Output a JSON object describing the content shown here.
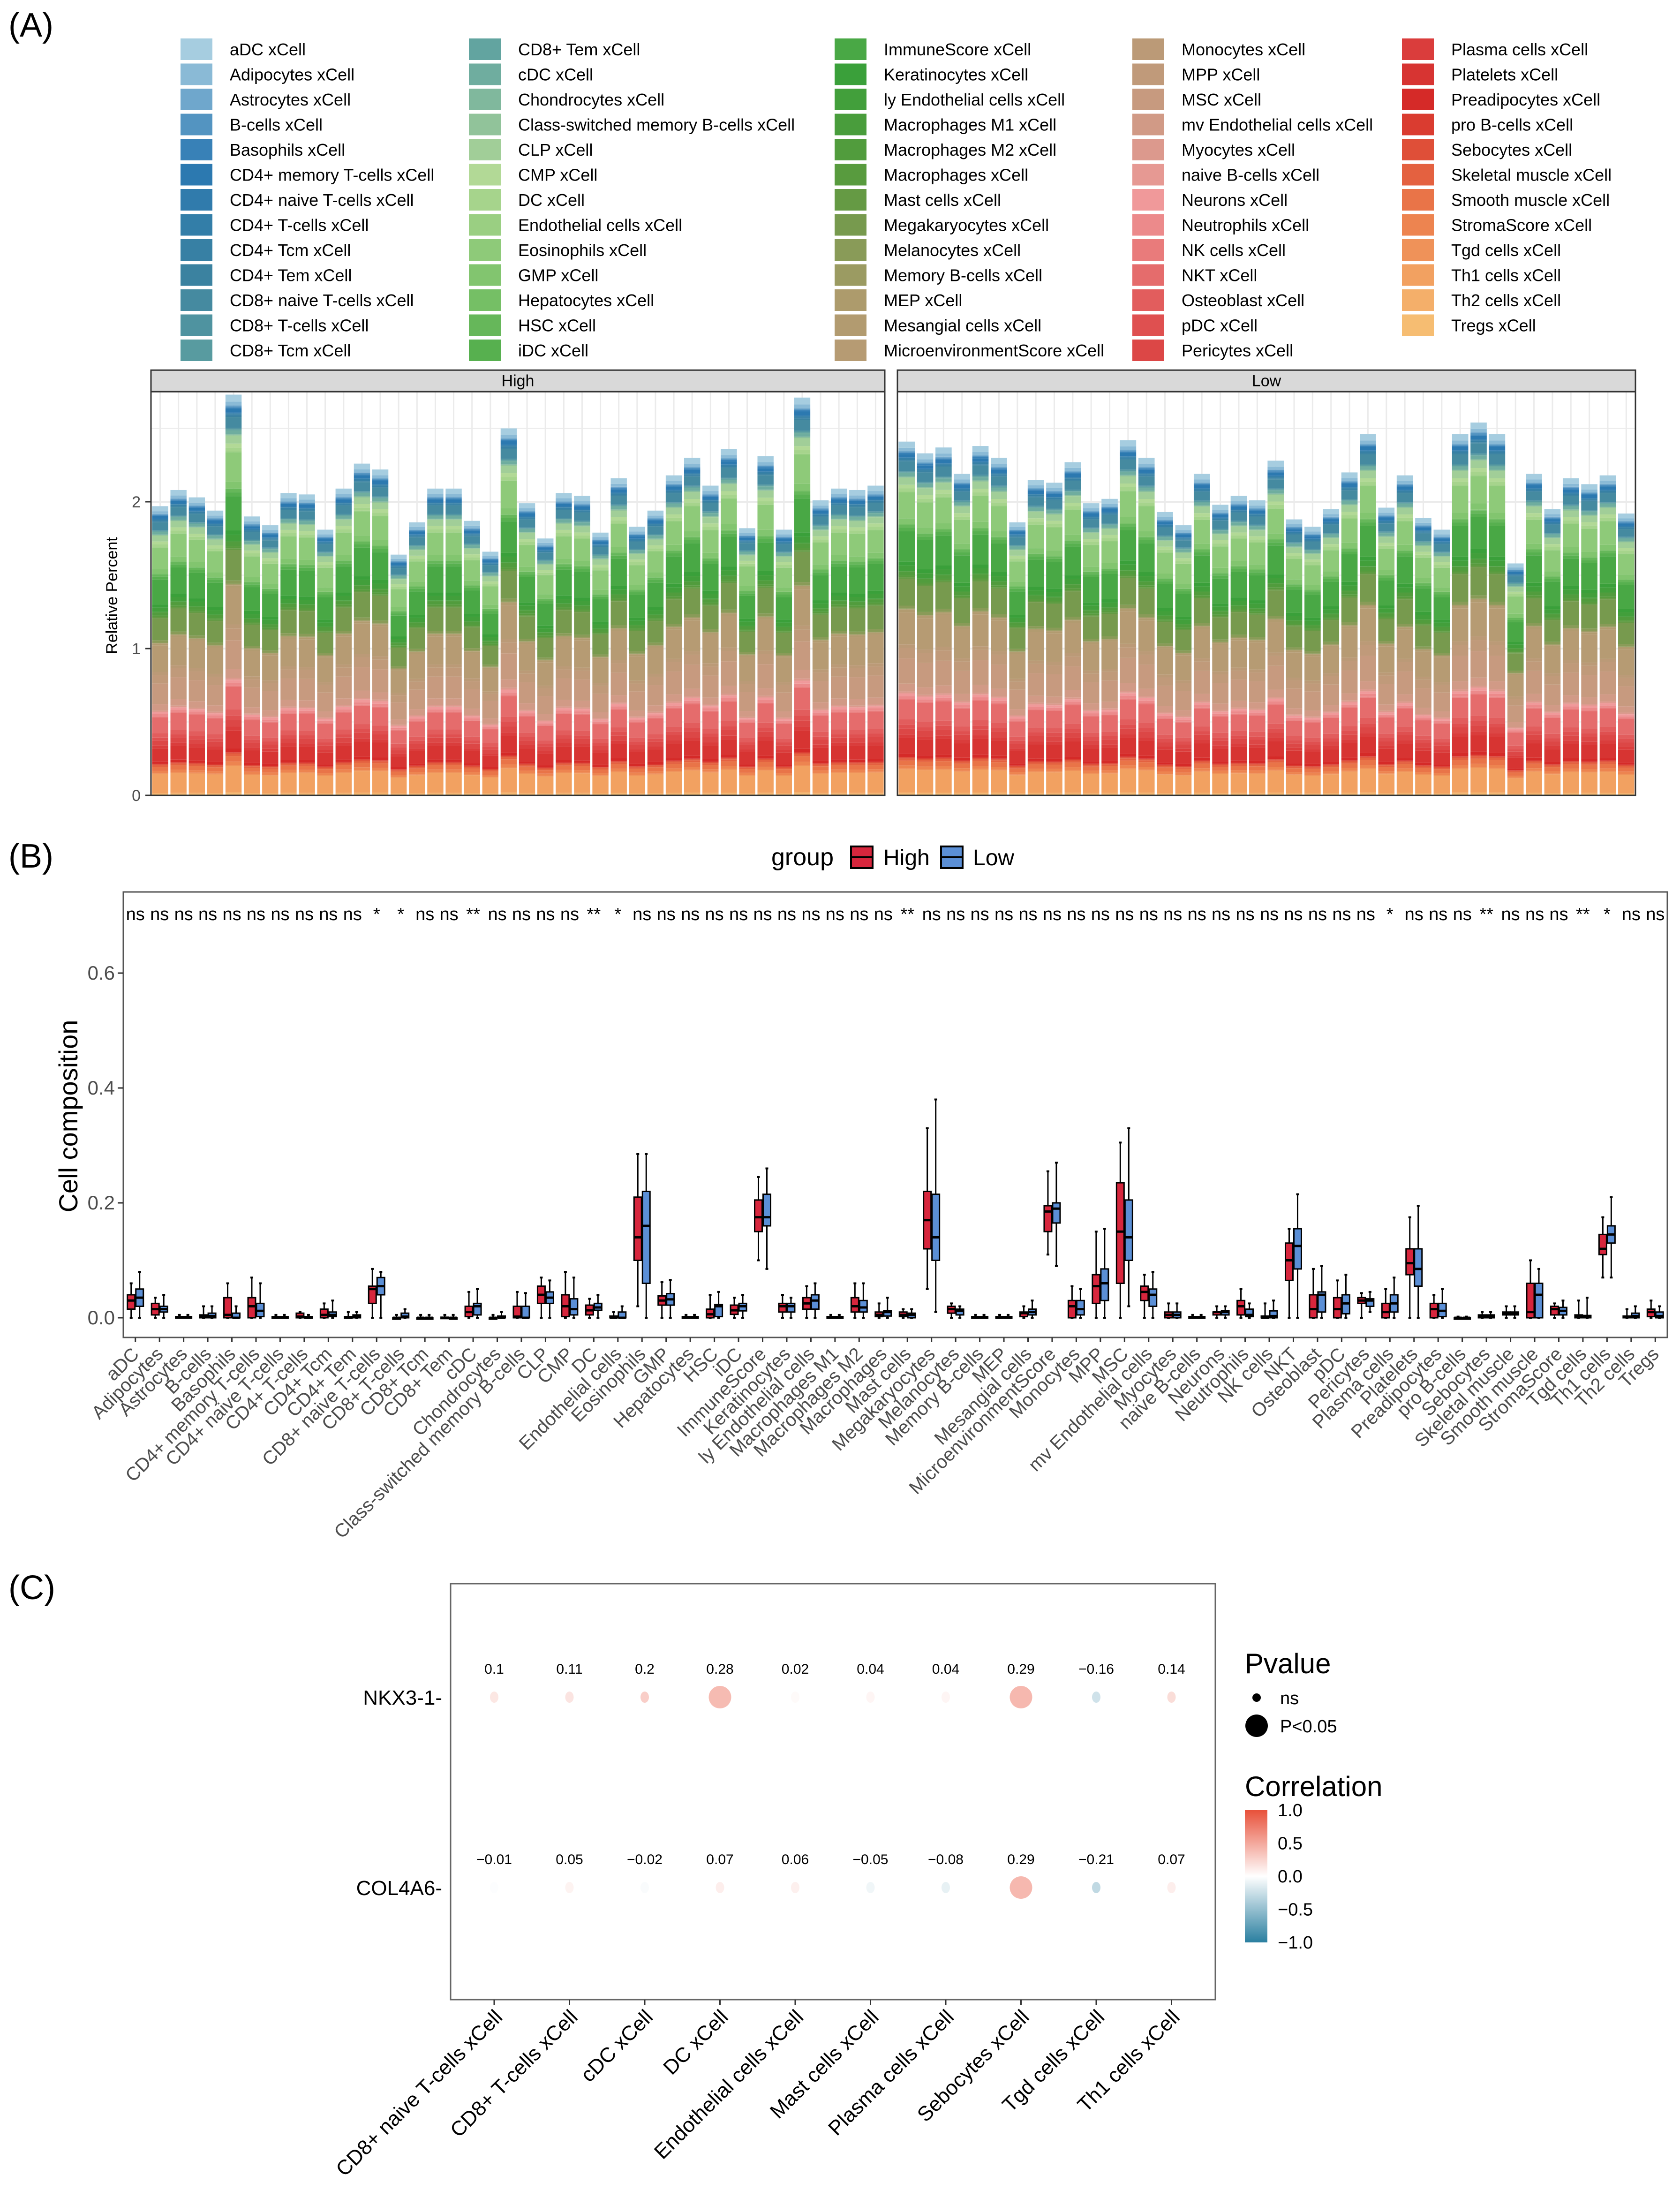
{
  "panel_labels": {
    "a": "(A)",
    "b": "(B)",
    "c": "(C)"
  },
  "colors": {
    "high": "#d7263d",
    "low": "#5b8fd6",
    "corr_neg": "#2a7fa0",
    "corr_zero": "#ffffff",
    "corr_pos": "#e8513a",
    "palette_stops": [
      "#a6cde0",
      "#2a78b2",
      "#3b82a0",
      "#67a8a0",
      "#b2d996",
      "#7cc36a",
      "#3aa03a",
      "#5c9a3f",
      "#ad9b6c",
      "#c29a7c",
      "#f0999a",
      "#e05555",
      "#d52a28",
      "#ec7d4c",
      "#f6bd72"
    ]
  },
  "cell_types": [
    "aDC",
    "Adipocytes",
    "Astrocytes",
    "B-cells",
    "Basophils",
    "CD4+ memory T-cells",
    "CD4+ naive T-cells",
    "CD4+ T-cells",
    "CD4+ Tcm",
    "CD4+ Tem",
    "CD8+ naive T-cells",
    "CD8+ T-cells",
    "CD8+ Tcm",
    "CD8+ Tem",
    "cDC",
    "Chondrocytes",
    "Class-switched memory B-cells",
    "CLP",
    "CMP",
    "DC",
    "Endothelial cells",
    "Eosinophils",
    "GMP",
    "Hepatocytes",
    "HSC",
    "iDC",
    "ImmuneScore",
    "Keratinocytes",
    "ly Endothelial cells",
    "Macrophages M1",
    "Macrophages M2",
    "Macrophages",
    "Mast cells",
    "Megakaryocytes",
    "Melanocytes",
    "Memory B-cells",
    "MEP",
    "Mesangial cells",
    "MicroenvironmentScore",
    "Monocytes",
    "MPP",
    "MSC",
    "mv Endothelial cells",
    "Myocytes",
    "naive B-cells",
    "Neurons",
    "Neutrophils",
    "NK cells",
    "NKT",
    "Osteoblast",
    "pDC",
    "Pericytes",
    "Plasma cells",
    "Platelets",
    "Preadipocytes",
    "pro B-cells",
    "Sebocytes",
    "Skeletal muscle",
    "Smooth muscle",
    "StromaScore",
    "Tgd cells",
    "Th1 cells",
    "Th2 cells",
    "Tregs"
  ],
  "chart_data": [
    {
      "type": "bar",
      "stacked": true,
      "legend_suffix": " xCell",
      "legend_placement": "top",
      "facets": [
        "High",
        "Low"
      ],
      "ylabel": "Relative Percent",
      "yticks": [
        0,
        1,
        2
      ],
      "ylim": [
        0,
        2.75
      ],
      "grid": true,
      "sample_totals": {
        "High": [
          1.97,
          2.08,
          2.03,
          1.94,
          2.73,
          1.9,
          1.84,
          2.06,
          2.05,
          1.81,
          2.09,
          2.26,
          2.22,
          1.64,
          1.86,
          2.09,
          2.09,
          1.87,
          1.66,
          2.5,
          1.99,
          1.75,
          2.06,
          2.04,
          1.79,
          2.16,
          1.83,
          1.94,
          2.18,
          2.3,
          2.11,
          2.36,
          1.82,
          2.31,
          1.81,
          2.71,
          2.01,
          2.09,
          2.08,
          2.11
        ],
        "Low": [
          2.41,
          2.33,
          2.37,
          2.19,
          2.38,
          2.3,
          1.86,
          2.15,
          2.13,
          2.27,
          1.99,
          2.02,
          2.42,
          2.3,
          1.93,
          1.84,
          2.19,
          1.98,
          2.04,
          2.01,
          2.28,
          1.88,
          1.83,
          1.95,
          2.2,
          2.46,
          1.96,
          2.18,
          1.89,
          1.81,
          2.46,
          2.54,
          2.46,
          1.58,
          2.19,
          1.95,
          2.16,
          2.12,
          2.18,
          1.92
        ]
      }
    },
    {
      "type": "box",
      "legend_title": "group",
      "groups": [
        "High",
        "Low"
      ],
      "ylabel": "Cell composition",
      "yticks": [
        "0.0",
        "0.2",
        "0.4",
        "0.6"
      ],
      "ylim": [
        -0.02,
        0.69
      ],
      "significance": [
        "ns",
        "ns",
        "ns",
        "ns",
        "ns",
        "ns",
        "ns",
        "ns",
        "ns",
        "ns",
        "*",
        "*",
        "ns",
        "ns",
        "**",
        "ns",
        "ns",
        "ns",
        "ns",
        "**",
        "*",
        "ns",
        "ns",
        "ns",
        "ns",
        "ns",
        "ns",
        "ns",
        "ns",
        "ns",
        "ns",
        "ns",
        "**",
        "ns",
        "ns",
        "ns",
        "ns",
        "ns",
        "ns",
        "ns",
        "ns",
        "ns",
        "ns",
        "ns",
        "ns",
        "ns",
        "ns",
        "ns",
        "ns",
        "ns",
        "ns",
        "ns",
        "*",
        "ns",
        "ns",
        "ns",
        "**",
        "ns",
        "ns",
        "ns",
        "**",
        "*",
        "ns",
        "ns"
      ],
      "high": [
        [
          0,
          0.015,
          0.03,
          0.04,
          0.06
        ],
        [
          0,
          0.005,
          0.015,
          0.025,
          0.035
        ],
        [
          0,
          0,
          0.001,
          0.002,
          0.005
        ],
        [
          0,
          0,
          0.002,
          0.005,
          0.02
        ],
        [
          0,
          0,
          0.005,
          0.035,
          0.06
        ],
        [
          0,
          0,
          0.02,
          0.035,
          0.07
        ],
        [
          0,
          0,
          0,
          0.002,
          0.005
        ],
        [
          0,
          0,
          0.002,
          0.008,
          0.01
        ],
        [
          0,
          0,
          0.005,
          0.015,
          0.025
        ],
        [
          0,
          0,
          0,
          0.002,
          0.01
        ],
        [
          0,
          0.025,
          0.05,
          0.055,
          0.085
        ],
        [
          0,
          0,
          0,
          0,
          0.005
        ],
        [
          0,
          0,
          0,
          0,
          0.005
        ],
        [
          0,
          0,
          0,
          0.001,
          0.005
        ],
        [
          0,
          0.002,
          0.01,
          0.02,
          0.045
        ],
        [
          0,
          0,
          0,
          0,
          0.005
        ],
        [
          0,
          0,
          0.002,
          0.02,
          0.045
        ],
        [
          0,
          0.025,
          0.04,
          0.055,
          0.07
        ],
        [
          0,
          0.002,
          0.02,
          0.04,
          0.08
        ],
        [
          0,
          0.005,
          0.013,
          0.022,
          0.033
        ],
        [
          0,
          0,
          0,
          0.003,
          0.01
        ],
        [
          0.02,
          0.1,
          0.14,
          0.21,
          0.285
        ],
        [
          0,
          0.022,
          0.03,
          0.038,
          0.062
        ],
        [
          0,
          0,
          0,
          0.002,
          0.005
        ],
        [
          0,
          0,
          0.006,
          0.015,
          0.04
        ],
        [
          0,
          0.006,
          0.013,
          0.022,
          0.035
        ],
        [
          0.1,
          0.15,
          0.175,
          0.205,
          0.245
        ],
        [
          0,
          0.01,
          0.02,
          0.025,
          0.04
        ],
        [
          0,
          0.015,
          0.025,
          0.035,
          0.055
        ],
        [
          0,
          0,
          0,
          0.002,
          0.005
        ],
        [
          0,
          0.01,
          0.02,
          0.035,
          0.06
        ],
        [
          0,
          0.002,
          0.005,
          0.01,
          0.025
        ],
        [
          0,
          0.002,
          0.005,
          0.01,
          0.015
        ],
        [
          0.05,
          0.12,
          0.17,
          0.22,
          0.33
        ],
        [
          0,
          0.008,
          0.015,
          0.02,
          0.025
        ],
        [
          0,
          0,
          0,
          0.002,
          0.005
        ],
        [
          0,
          0,
          0,
          0.002,
          0.005
        ],
        [
          0,
          0.002,
          0.008,
          0.01,
          0.02
        ],
        [
          0.11,
          0.15,
          0.185,
          0.195,
          0.255
        ],
        [
          0,
          0,
          0.02,
          0.03,
          0.055
        ],
        [
          0,
          0.025,
          0.055,
          0.075,
          0.15
        ],
        [
          0,
          0.06,
          0.15,
          0.235,
          0.305
        ],
        [
          0,
          0.03,
          0.045,
          0.055,
          0.075
        ],
        [
          0,
          0,
          0.005,
          0.01,
          0.025
        ],
        [
          0,
          0,
          0,
          0.002,
          0.005
        ],
        [
          0,
          0.005,
          0.01,
          0.01,
          0.02
        ],
        [
          0,
          0.005,
          0.02,
          0.03,
          0.05
        ],
        [
          0,
          0,
          0,
          0.003,
          0.025
        ],
        [
          0,
          0.065,
          0.1,
          0.13,
          0.155
        ],
        [
          0,
          0,
          0.015,
          0.04,
          0.085
        ],
        [
          0,
          0,
          0.015,
          0.035,
          0.065
        ],
        [
          0,
          0.025,
          0.03,
          0.035,
          0.043
        ],
        [
          0,
          0,
          0.01,
          0.025,
          0.05
        ],
        [
          0,
          0.075,
          0.095,
          0.12,
          0.175
        ],
        [
          0,
          0,
          0.015,
          0.025,
          0.04
        ],
        [
          0,
          0,
          0,
          0,
          0.002
        ],
        [
          0,
          0,
          0.002,
          0.005,
          0.01
        ],
        [
          0,
          0.005,
          0.008,
          0.01,
          0.02
        ],
        [
          0,
          0,
          0.01,
          0.06,
          0.1
        ],
        [
          0,
          0.005,
          0.015,
          0.02,
          0.025
        ],
        [
          0,
          0,
          0.002,
          0.005,
          0.03
        ],
        [
          0.07,
          0.11,
          0.12,
          0.145,
          0.175
        ],
        [
          0,
          0,
          0.002,
          0.003,
          0.015
        ],
        [
          0,
          0.002,
          0.01,
          0.015,
          0.03
        ]
      ],
      "low": [
        [
          0,
          0.02,
          0.035,
          0.05,
          0.08
        ],
        [
          0,
          0.01,
          0.015,
          0.02,
          0.04
        ],
        [
          0,
          0,
          0.001,
          0.002,
          0.005
        ],
        [
          0,
          0,
          0.003,
          0.008,
          0.02
        ],
        [
          0,
          0,
          0,
          0.008,
          0.02
        ],
        [
          0,
          0.002,
          0.012,
          0.025,
          0.06
        ],
        [
          0,
          0,
          0,
          0.002,
          0.005
        ],
        [
          0,
          0,
          0,
          0.002,
          0.005
        ],
        [
          0,
          0.002,
          0.005,
          0.01,
          0.03
        ],
        [
          0,
          0,
          0.003,
          0.005,
          0.01
        ],
        [
          0,
          0.04,
          0.055,
          0.07,
          0.08
        ],
        [
          0,
          0,
          0.002,
          0.008,
          0.015
        ],
        [
          0,
          0,
          0,
          0,
          0.005
        ],
        [
          0,
          0,
          0,
          0,
          0.005
        ],
        [
          0,
          0.005,
          0.02,
          0.025,
          0.05
        ],
        [
          0,
          0,
          0,
          0.003,
          0.01
        ],
        [
          0,
          0,
          0,
          0.02,
          0.043
        ],
        [
          0,
          0.025,
          0.035,
          0.045,
          0.065
        ],
        [
          0,
          0.005,
          0.015,
          0.033,
          0.07
        ],
        [
          0,
          0.013,
          0.018,
          0.025,
          0.04
        ],
        [
          0,
          0,
          0,
          0.01,
          0.02
        ],
        [
          0,
          0.06,
          0.16,
          0.22,
          0.285
        ],
        [
          0,
          0.022,
          0.032,
          0.042,
          0.066
        ],
        [
          0,
          0,
          0,
          0.002,
          0.005
        ],
        [
          0,
          0.002,
          0.02,
          0.023,
          0.045
        ],
        [
          0,
          0.012,
          0.02,
          0.025,
          0.04
        ],
        [
          0.085,
          0.16,
          0.175,
          0.215,
          0.26
        ],
        [
          0,
          0.01,
          0.02,
          0.025,
          0.035
        ],
        [
          0,
          0.015,
          0.03,
          0.04,
          0.06
        ],
        [
          0,
          0,
          0,
          0.002,
          0.005
        ],
        [
          0,
          0.01,
          0.018,
          0.03,
          0.06
        ],
        [
          0,
          0.003,
          0.01,
          0.012,
          0.035
        ],
        [
          0,
          0,
          0.005,
          0.008,
          0.015
        ],
        [
          0.01,
          0.1,
          0.14,
          0.215,
          0.38
        ],
        [
          0,
          0.005,
          0.012,
          0.015,
          0.02
        ],
        [
          0,
          0,
          0,
          0.002,
          0.005
        ],
        [
          0,
          0,
          0,
          0.002,
          0.005
        ],
        [
          0,
          0.005,
          0.01,
          0.015,
          0.03
        ],
        [
          0.09,
          0.165,
          0.19,
          0.2,
          0.27
        ],
        [
          0,
          0.005,
          0.015,
          0.03,
          0.05
        ],
        [
          0,
          0.03,
          0.06,
          0.085,
          0.155
        ],
        [
          0.02,
          0.1,
          0.14,
          0.205,
          0.33
        ],
        [
          0,
          0.02,
          0.04,
          0.05,
          0.08
        ],
        [
          0,
          0,
          0.005,
          0.01,
          0.025
        ],
        [
          0,
          0,
          0,
          0.002,
          0.005
        ],
        [
          0,
          0.005,
          0.01,
          0.012,
          0.02
        ],
        [
          0,
          0.002,
          0.005,
          0.015,
          0.025
        ],
        [
          0,
          0,
          0.003,
          0.012,
          0.03
        ],
        [
          0,
          0.085,
          0.125,
          0.155,
          0.215
        ],
        [
          0,
          0.01,
          0.04,
          0.045,
          0.09
        ],
        [
          0,
          0.007,
          0.025,
          0.04,
          0.075
        ],
        [
          0.01,
          0.02,
          0.03,
          0.033,
          0.045
        ],
        [
          0,
          0.01,
          0.025,
          0.04,
          0.07
        ],
        [
          0,
          0.055,
          0.085,
          0.12,
          0.195
        ],
        [
          0,
          0.002,
          0.012,
          0.025,
          0.05
        ],
        [
          0,
          0,
          0,
          0,
          0.002
        ],
        [
          0,
          0,
          0.002,
          0.005,
          0.01
        ],
        [
          0,
          0.005,
          0.008,
          0.01,
          0.02
        ],
        [
          0,
          0,
          0.04,
          0.06,
          0.085
        ],
        [
          0,
          0.005,
          0.012,
          0.018,
          0.03
        ],
        [
          0,
          0,
          0.002,
          0.004,
          0.035
        ],
        [
          0.07,
          0.13,
          0.145,
          0.16,
          0.21
        ],
        [
          0,
          0,
          0.003,
          0.008,
          0.02
        ],
        [
          0,
          0,
          0.003,
          0.01,
          0.02
        ]
      ]
    },
    {
      "type": "scatter",
      "subtype": "dot-matrix",
      "genes": [
        "NKX3-1",
        "COL4A6"
      ],
      "cells": [
        "CD8+ naive T-cells xCell",
        "CD8+ T-cells xCell",
        "cDC xCell",
        "DC xCell",
        "Endothelial cells xCell",
        "Mast cells xCell",
        "Plasma cells xCell",
        "Sebocytes xCell",
        "Tgd cells xCell",
        "Th1 cells xCell"
      ],
      "correlation": [
        [
          0.1,
          0.11,
          0.2,
          0.28,
          0.02,
          0.04,
          0.04,
          0.29,
          -0.16,
          0.14
        ],
        [
          -0.01,
          0.05,
          -0.02,
          0.07,
          0.06,
          -0.05,
          -0.08,
          0.29,
          -0.21,
          0.07
        ]
      ],
      "correlation_labels": [
        [
          "0.1",
          "0.11",
          "0.2",
          "0.28",
          "0.02",
          "0.04",
          "0.04",
          "0.29",
          "−0.16",
          "0.14"
        ],
        [
          "−0.01",
          "0.05",
          "−0.02",
          "0.07",
          "0.06",
          "−0.05",
          "−0.08",
          "0.29",
          "−0.21",
          "0.07"
        ]
      ],
      "significant": [
        [
          false,
          false,
          false,
          true,
          false,
          false,
          false,
          true,
          false,
          false
        ],
        [
          false,
          false,
          false,
          false,
          false,
          false,
          false,
          true,
          false,
          false
        ]
      ],
      "pvalue_legend": {
        "title": "Pvalue",
        "items": [
          "ns",
          "P<0.05"
        ]
      },
      "correlation_legend": {
        "title": "Correlation",
        "ticks": [
          "1.0",
          "0.5",
          "0.0",
          "−0.5",
          "−1.0"
        ],
        "range": [
          -1,
          1
        ]
      }
    }
  ]
}
